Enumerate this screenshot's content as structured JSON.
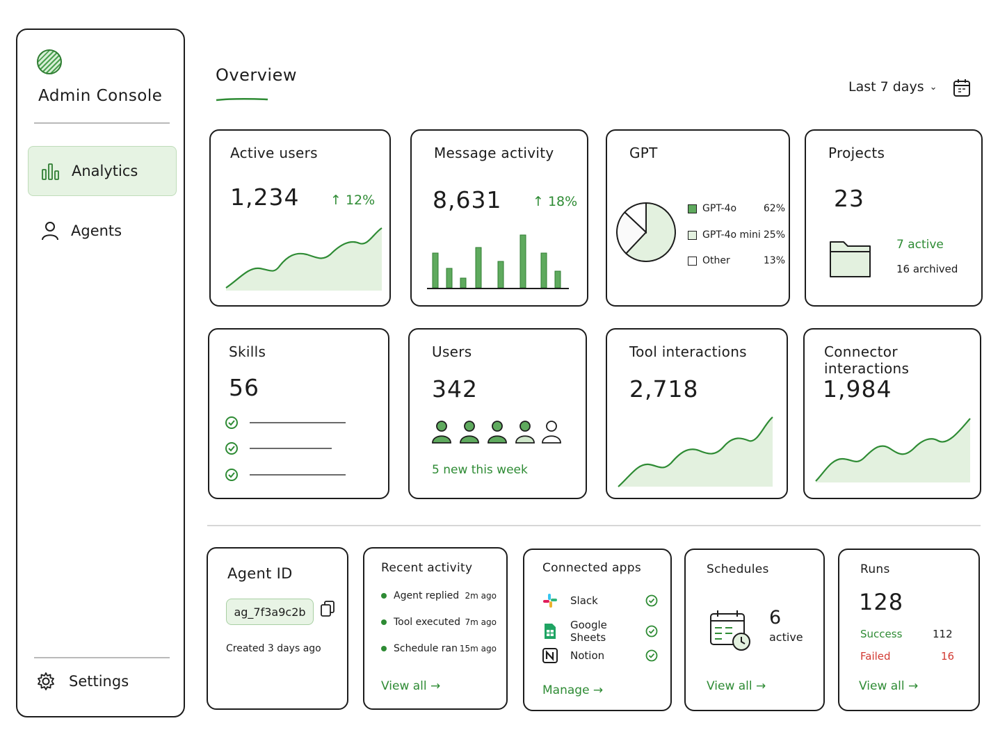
{
  "app": {
    "title": "Admin Console"
  },
  "sidebar": {
    "items": [
      {
        "label": "Analytics",
        "icon": "bar-chart-icon",
        "active": true
      },
      {
        "label": "Agents",
        "icon": "person-icon",
        "active": false
      }
    ],
    "settings_label": "Settings"
  },
  "header": {
    "title": "Overview",
    "range_label": "Last 7 days"
  },
  "cards": {
    "active_users": {
      "title": "Active users",
      "value": "1,234",
      "delta": "↑ 12%"
    },
    "message_activity": {
      "title": "Message activity",
      "value": "8,631",
      "delta": "↑ 18%"
    },
    "gpt": {
      "title": "GPT",
      "legend": [
        {
          "label": "GPT-4o",
          "pct": "62%"
        },
        {
          "label": "GPT-4o mini",
          "pct": "25%"
        },
        {
          "label": "Other",
          "pct": "13%"
        }
      ]
    },
    "projects": {
      "title": "Projects",
      "value": "23",
      "active": "7 active",
      "archived": "16 archived"
    },
    "skills": {
      "title": "Skills",
      "value": "56"
    },
    "users": {
      "title": "Users",
      "value": "342",
      "new_label": "5 new this week"
    },
    "tool_interactions": {
      "title": "Tool interactions",
      "value": "2,718"
    },
    "connector_interactions": {
      "title": "Connector interactions",
      "value": "1,984"
    },
    "agent_id": {
      "title": "Agent ID",
      "value": "ag_7f3a9c2b",
      "created": "Created 3 days ago"
    },
    "recent_activity": {
      "title": "Recent activity",
      "items": [
        {
          "text": "Agent replied",
          "time": "2m ago"
        },
        {
          "text": "Tool executed",
          "time": "7m ago"
        },
        {
          "text": "Schedule ran",
          "time": "15m ago"
        }
      ],
      "link": "View all →"
    },
    "connected_apps": {
      "title": "Connected apps",
      "apps": [
        {
          "name": "Slack",
          "icon": "slack-icon"
        },
        {
          "name": "Google Sheets",
          "icon": "google-sheets-icon"
        },
        {
          "name": "Notion",
          "icon": "notion-icon"
        }
      ],
      "link": "Manage →"
    },
    "schedules": {
      "title": "Schedules",
      "value": "6",
      "sub": "active",
      "link": "View all →"
    },
    "runs": {
      "title": "Runs",
      "value": "128",
      "success_label": "Success",
      "success_value": "112",
      "failed_label": "Failed",
      "failed_value": "16",
      "link": "View all →"
    }
  },
  "chart_data": [
    {
      "type": "pie",
      "categories": [
        "GPT-4o",
        "GPT-4o mini",
        "Other"
      ],
      "values": [
        62,
        25,
        13
      ]
    }
  ],
  "colors": {
    "accent": "#2e8b34",
    "accent_light": "#e6f3e3",
    "danger": "#d23a32",
    "ink": "#1c1c1c"
  }
}
